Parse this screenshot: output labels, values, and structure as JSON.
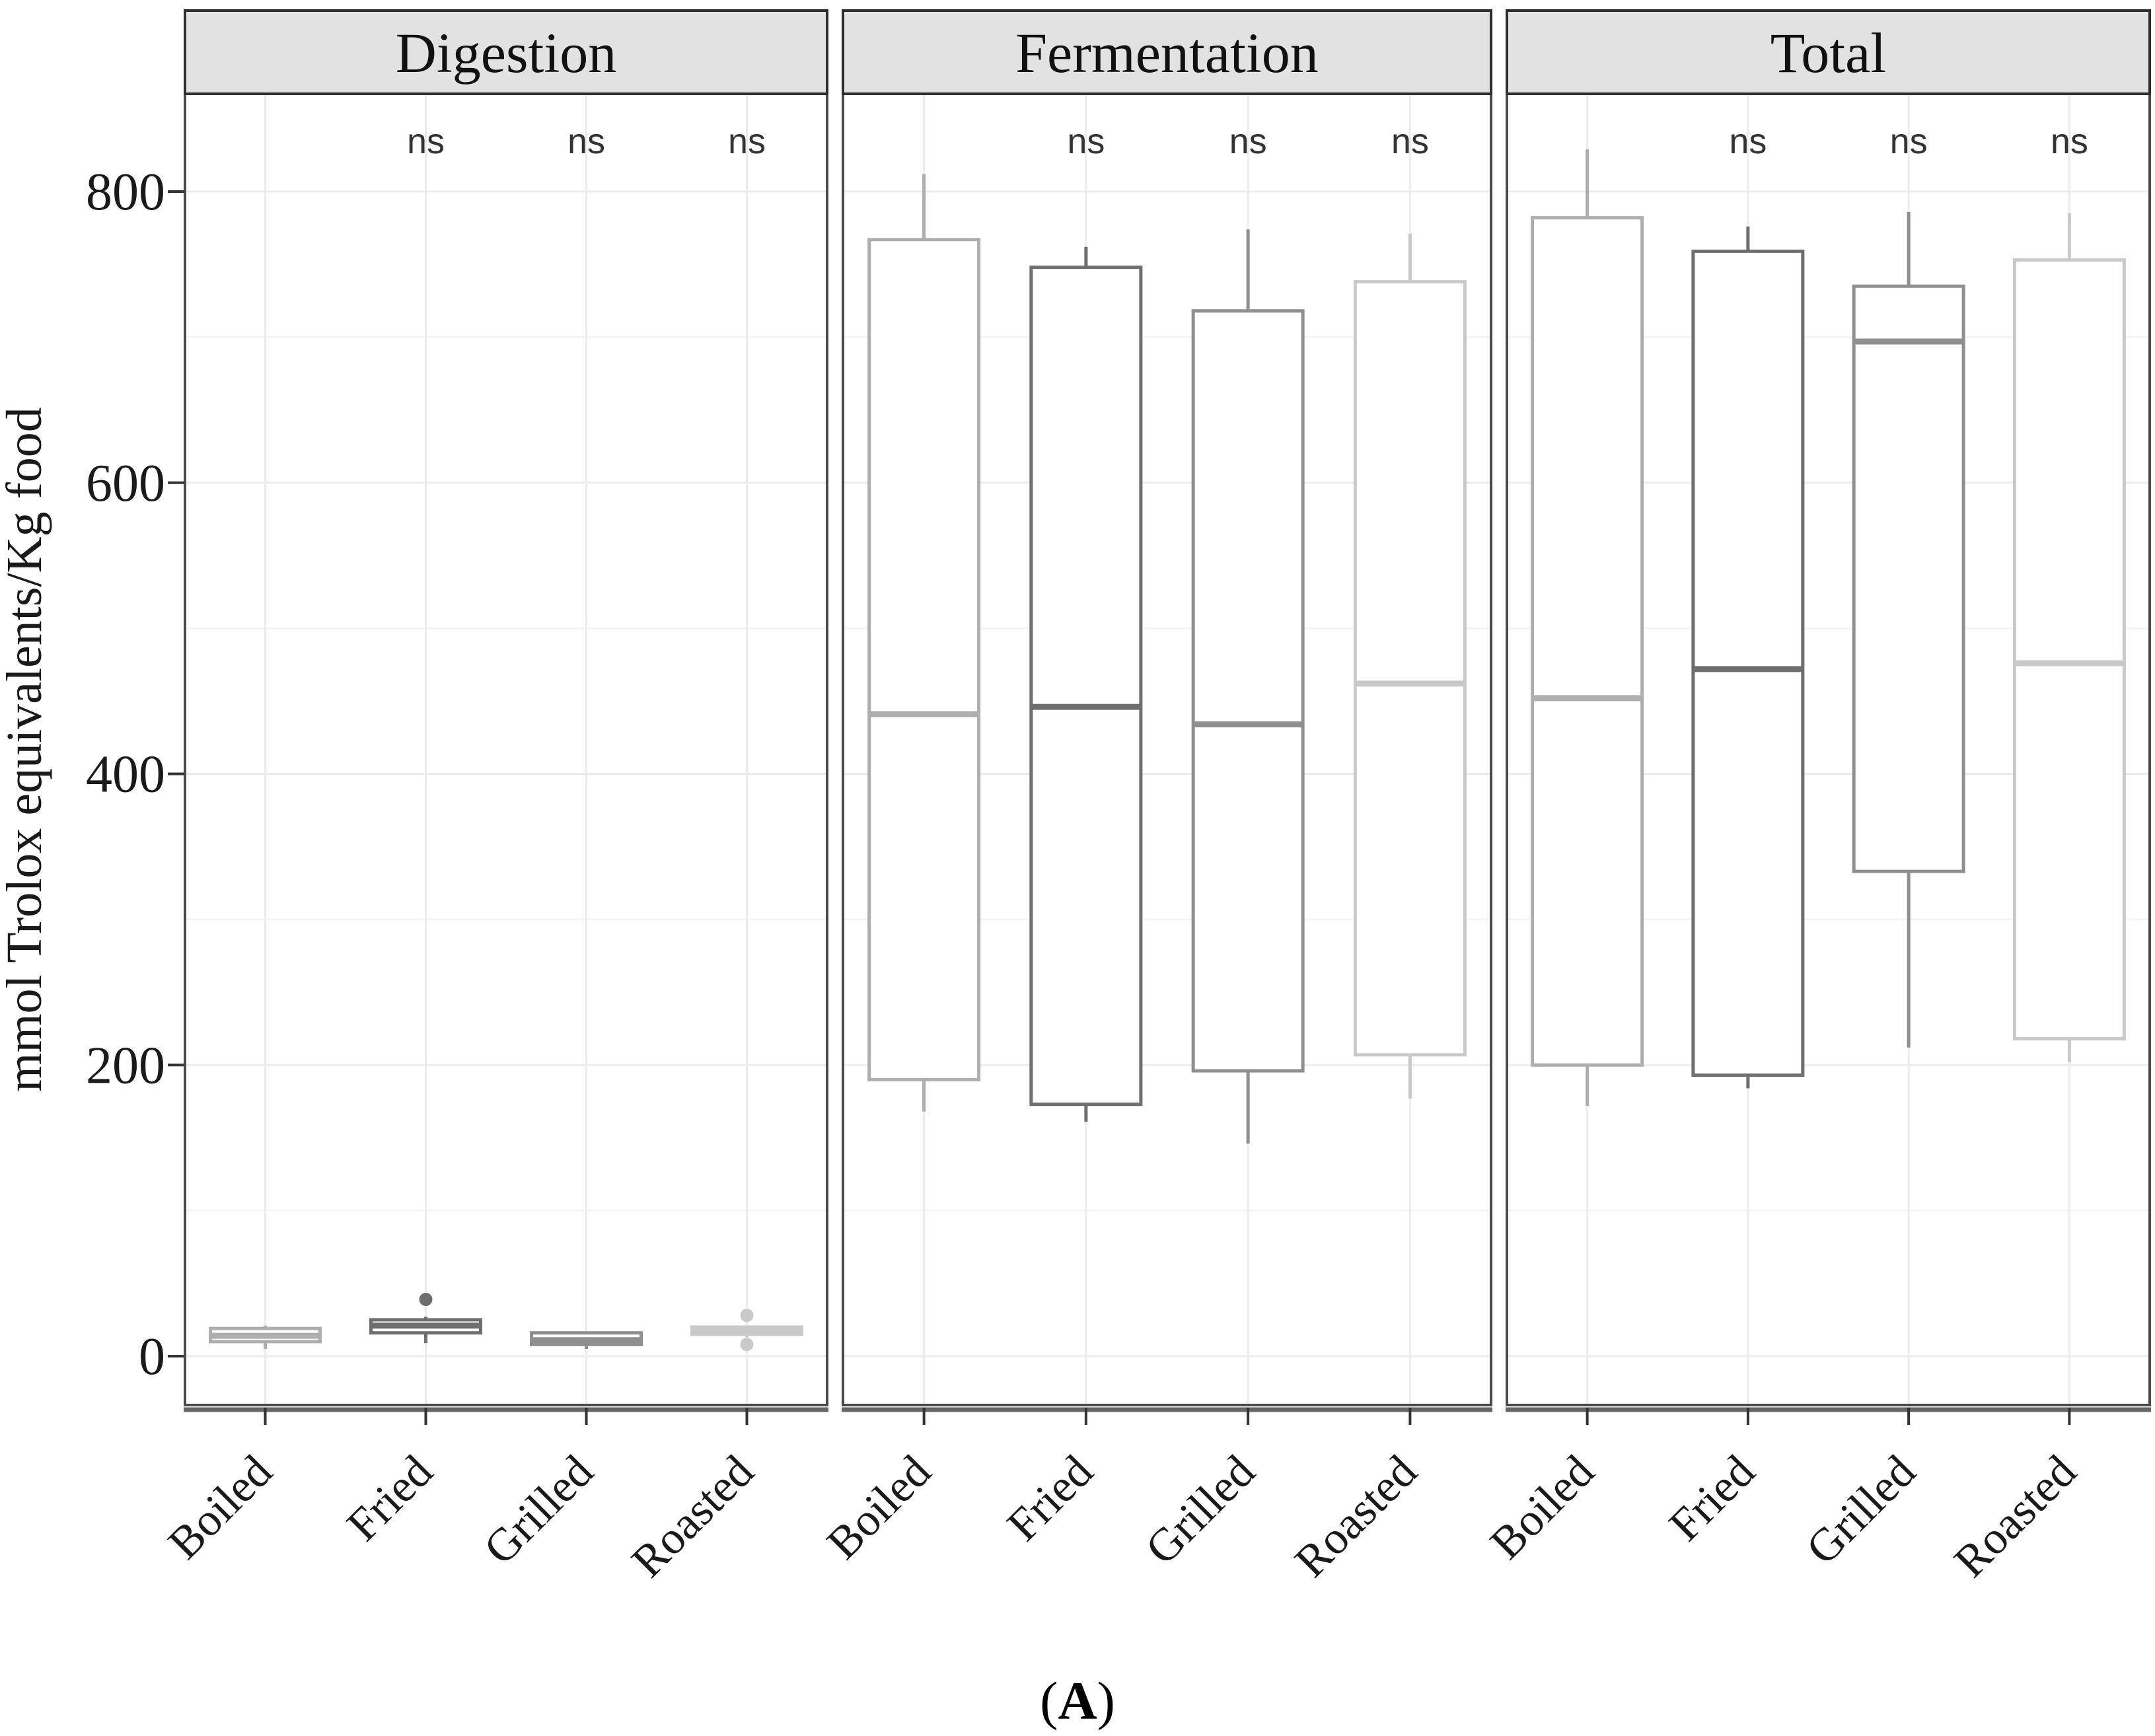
{
  "figure": {
    "caption": {
      "open": "(",
      "letter": "A",
      "close": ")"
    }
  },
  "chart_data": {
    "type": "boxplot",
    "faceted": true,
    "title": "",
    "xlabel": "",
    "ylabel": "mmol Trolox equivalents/Kg food",
    "yticks": [
      0,
      200,
      400,
      600,
      800
    ],
    "ylim": [
      -30,
      875
    ],
    "grid": {
      "major": true,
      "minor": true,
      "minor_step": 100
    },
    "categories": [
      "Boiled",
      "Fried",
      "Grilled",
      "Roasted"
    ],
    "significance": {
      "text": "ns",
      "categories": [
        "Fried",
        "Grilled",
        "Roasted"
      ]
    },
    "group_colors": {
      "Boiled": "#aeaeae",
      "Fried": "#6e6e6e",
      "Grilled": "#8f8f8f",
      "Roasted": "#c9c9c9"
    },
    "facets": [
      {
        "label": "Digestion",
        "boxes": [
          {
            "category": "Boiled",
            "whisker_low": 5,
            "q1": 10,
            "median": 14,
            "q3": 19,
            "whisker_high": 21,
            "outliers": []
          },
          {
            "category": "Fried",
            "whisker_low": 9,
            "q1": 16,
            "median": 21,
            "q3": 25,
            "whisker_high": 27,
            "outliers": [
              39
            ]
          },
          {
            "category": "Grilled",
            "whisker_low": 5,
            "q1": 8,
            "median": 11,
            "q3": 16,
            "whisker_high": 17,
            "outliers": []
          },
          {
            "category": "Roasted",
            "whisker_low": 13,
            "q1": 15,
            "median": 17,
            "q3": 20,
            "whisker_high": 21,
            "outliers": [
              28,
              8
            ]
          }
        ]
      },
      {
        "label": "Fermentation",
        "boxes": [
          {
            "category": "Boiled",
            "whisker_low": 168,
            "q1": 190,
            "median": 441,
            "q3": 767,
            "whisker_high": 812,
            "outliers": []
          },
          {
            "category": "Fried",
            "whisker_low": 161,
            "q1": 173,
            "median": 446,
            "q3": 748,
            "whisker_high": 762,
            "outliers": []
          },
          {
            "category": "Grilled",
            "whisker_low": 146,
            "q1": 196,
            "median": 434,
            "q3": 718,
            "whisker_high": 774,
            "outliers": []
          },
          {
            "category": "Roasted",
            "whisker_low": 177,
            "q1": 207,
            "median": 462,
            "q3": 738,
            "whisker_high": 771,
            "outliers": []
          }
        ]
      },
      {
        "label": "Total",
        "boxes": [
          {
            "category": "Boiled",
            "whisker_low": 172,
            "q1": 200,
            "median": 452,
            "q3": 782,
            "whisker_high": 829,
            "outliers": []
          },
          {
            "category": "Fried",
            "whisker_low": 184,
            "q1": 193,
            "median": 472,
            "q3": 759,
            "whisker_high": 776,
            "outliers": []
          },
          {
            "category": "Grilled",
            "whisker_low": 212,
            "q1": 333,
            "median": 697,
            "q3": 735,
            "whisker_high": 786,
            "outliers": []
          },
          {
            "category": "Roasted",
            "whisker_low": 202,
            "q1": 218,
            "median": 476,
            "q3": 753,
            "whisker_high": 785,
            "outliers": []
          }
        ]
      }
    ],
    "theme": {
      "header_fill": "#e2e2e2",
      "header_border": "#2e2e2e",
      "panel_background": "#ffffff",
      "panel_border": "#4a4a4a",
      "axis_line": "#666666",
      "grid_major": "#ececec",
      "grid_minor": "#f5f5f5",
      "tick_color": "#333333",
      "text_color": "#1a1a1a",
      "ns_color": "#333333"
    }
  }
}
